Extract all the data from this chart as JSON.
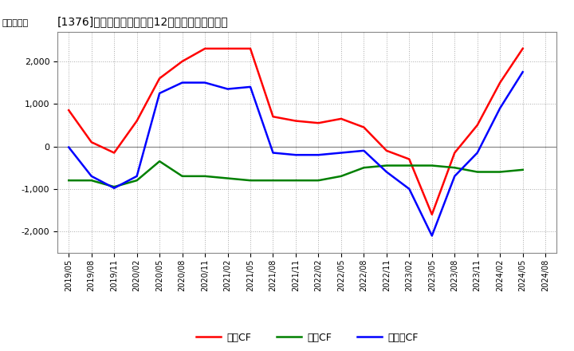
{
  "title": "[1376]キャッシュフローの12か月移動合計の推移",
  "ylabel": "（百万円）",
  "x_labels": [
    "2019/05",
    "2019/08",
    "2019/11",
    "2020/02",
    "2020/05",
    "2020/08",
    "2020/11",
    "2021/02",
    "2021/05",
    "2021/08",
    "2021/11",
    "2022/02",
    "2022/05",
    "2022/08",
    "2022/11",
    "2023/02",
    "2023/05",
    "2023/08",
    "2023/11",
    "2024/02",
    "2024/05",
    "2024/08"
  ],
  "operating_cf": [
    850,
    100,
    -150,
    600,
    1600,
    2000,
    2300,
    2300,
    2300,
    700,
    600,
    550,
    650,
    450,
    -100,
    -300,
    -1600,
    -150,
    500,
    1500,
    2300,
    null
  ],
  "investing_cf": [
    -800,
    -800,
    -950,
    -800,
    -350,
    -700,
    -700,
    -750,
    -800,
    -800,
    -800,
    -800,
    -700,
    -500,
    -450,
    -450,
    -450,
    -500,
    -600,
    -600,
    -550,
    null
  ],
  "free_cf": [
    -20,
    -700,
    -980,
    -700,
    1250,
    1500,
    1500,
    1350,
    1400,
    -150,
    -200,
    -200,
    -150,
    -100,
    -600,
    -1000,
    -2100,
    -700,
    -150,
    900,
    1750,
    null
  ],
  "ylim": [
    -2500,
    2700
  ],
  "yticks": [
    -2000,
    -1000,
    0,
    1000,
    2000
  ],
  "background_color": "#ffffff",
  "grid_color": "#aaaaaa",
  "operating_color": "#ff0000",
  "investing_color": "#008000",
  "free_color": "#0000ff",
  "linewidth": 1.8,
  "legend_labels": [
    "営業CF",
    "投資CF",
    "フリーCF"
  ]
}
